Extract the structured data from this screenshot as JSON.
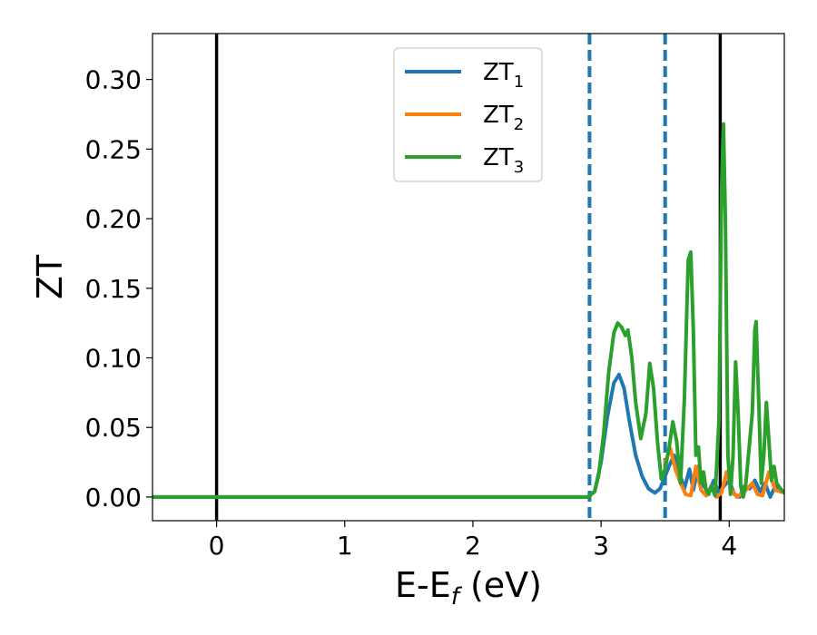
{
  "chart_data": {
    "type": "line",
    "title": "",
    "xlabel": "E-E",
    "xlabel_sub": "f",
    "xlabel_suffix": " (eV)",
    "ylabel": "ZT",
    "xlim": [
      -0.5,
      4.43
    ],
    "ylim": [
      -0.017,
      0.333
    ],
    "x_ticks": [
      0,
      1,
      2,
      3,
      4
    ],
    "x_tick_labels": [
      "0",
      "1",
      "2",
      "3",
      "4"
    ],
    "y_ticks": [
      0.0,
      0.05,
      0.1,
      0.15,
      0.2,
      0.25,
      0.3
    ],
    "y_tick_labels": [
      "0.00",
      "0.05",
      "0.10",
      "0.15",
      "0.20",
      "0.25",
      "0.30"
    ],
    "grid": false,
    "legend_position": "top-center",
    "vertical_lines": [
      {
        "x": 0.0,
        "style": "solid",
        "color": "#000000"
      },
      {
        "x": 3.93,
        "style": "solid",
        "color": "#000000"
      },
      {
        "x": 2.91,
        "style": "dashed",
        "color": "#1f77b4"
      },
      {
        "x": 3.5,
        "style": "dashed",
        "color": "#1f77b4"
      }
    ],
    "series": [
      {
        "name": "ZT",
        "name_sub": "1",
        "color": "#1f77b4",
        "points": [
          [
            -0.5,
            0
          ],
          [
            2.9,
            0
          ],
          [
            2.95,
            0.004
          ],
          [
            3.0,
            0.025
          ],
          [
            3.05,
            0.058
          ],
          [
            3.1,
            0.082
          ],
          [
            3.14,
            0.088
          ],
          [
            3.18,
            0.078
          ],
          [
            3.22,
            0.055
          ],
          [
            3.27,
            0.03
          ],
          [
            3.32,
            0.015
          ],
          [
            3.37,
            0.006
          ],
          [
            3.42,
            0.003
          ],
          [
            3.46,
            0.006
          ],
          [
            3.5,
            0.015
          ],
          [
            3.53,
            0.022
          ],
          [
            3.57,
            0.03
          ],
          [
            3.61,
            0.018
          ],
          [
            3.65,
            0.006
          ],
          [
            3.69,
            0.02
          ],
          [
            3.72,
            0.005
          ],
          [
            3.76,
            0.022
          ],
          [
            3.8,
            0.008
          ],
          [
            3.84,
            0.003
          ],
          [
            3.88,
            0.012
          ],
          [
            3.92,
            0.003
          ],
          [
            3.96,
            0.008
          ],
          [
            4.0,
            0.012
          ],
          [
            4.04,
            0.002
          ],
          [
            4.08,
            0.0
          ],
          [
            4.12,
            0.008
          ],
          [
            4.16,
            0.006
          ],
          [
            4.2,
            0.012
          ],
          [
            4.24,
            0.004
          ],
          [
            4.28,
            0.01
          ],
          [
            4.32,
            0.0
          ],
          [
            4.36,
            0.008
          ],
          [
            4.43,
            0.003
          ]
        ]
      },
      {
        "name": "ZT",
        "name_sub": "2",
        "color": "#ff7f0e",
        "points": [
          [
            3.5,
            0.025
          ],
          [
            3.54,
            0.035
          ],
          [
            3.58,
            0.02
          ],
          [
            3.62,
            0.01
          ],
          [
            3.66,
            0.002
          ],
          [
            3.7,
            0.001
          ],
          [
            3.74,
            0.022
          ],
          [
            3.78,
            0.005
          ],
          [
            3.82,
            0.001
          ],
          [
            3.86,
            0.008
          ],
          [
            3.9,
            0.0
          ],
          [
            3.94,
            0.003
          ],
          [
            3.98,
            0.018
          ],
          [
            4.02,
            0.005
          ],
          [
            4.06,
            0.0
          ],
          [
            4.12,
            0.004
          ],
          [
            4.18,
            0.01
          ],
          [
            4.22,
            0.002
          ],
          [
            4.26,
            0.001
          ],
          [
            4.31,
            0.018
          ],
          [
            4.36,
            0.005
          ],
          [
            4.43,
            0.003
          ]
        ]
      },
      {
        "name": "ZT",
        "name_sub": "3",
        "color": "#2ca02c",
        "points": [
          [
            -0.5,
            0
          ],
          [
            2.9,
            0
          ],
          [
            2.95,
            0.004
          ],
          [
            2.98,
            0.015
          ],
          [
            3.02,
            0.045
          ],
          [
            3.06,
            0.09
          ],
          [
            3.1,
            0.118
          ],
          [
            3.13,
            0.125
          ],
          [
            3.16,
            0.122
          ],
          [
            3.19,
            0.116
          ],
          [
            3.21,
            0.12
          ],
          [
            3.24,
            0.1
          ],
          [
            3.27,
            0.068
          ],
          [
            3.31,
            0.042
          ],
          [
            3.35,
            0.06
          ],
          [
            3.38,
            0.096
          ],
          [
            3.41,
            0.078
          ],
          [
            3.44,
            0.04
          ],
          [
            3.47,
            0.013
          ],
          [
            3.5,
            0.02
          ],
          [
            3.53,
            0.035
          ],
          [
            3.56,
            0.054
          ],
          [
            3.59,
            0.04
          ],
          [
            3.62,
            0.01
          ],
          [
            3.65,
            0.07
          ],
          [
            3.68,
            0.17
          ],
          [
            3.7,
            0.176
          ],
          [
            3.72,
            0.12
          ],
          [
            3.74,
            0.03
          ],
          [
            3.76,
            0.036
          ],
          [
            3.78,
            0.01
          ],
          [
            3.8,
            0.018
          ],
          [
            3.82,
            0.005
          ],
          [
            3.84,
            0.002
          ],
          [
            3.86,
            0.008
          ],
          [
            3.89,
            0.001
          ],
          [
            3.92,
            0.055
          ],
          [
            3.94,
            0.22
          ],
          [
            3.955,
            0.268
          ],
          [
            3.97,
            0.2
          ],
          [
            3.99,
            0.03
          ],
          [
            4.01,
            0.002
          ],
          [
            4.03,
            0.03
          ],
          [
            4.05,
            0.097
          ],
          [
            4.07,
            0.06
          ],
          [
            4.09,
            0.008
          ],
          [
            4.11,
            0.0
          ],
          [
            4.13,
            0.01
          ],
          [
            4.15,
            0.03
          ],
          [
            4.18,
            0.06
          ],
          [
            4.2,
            0.12
          ],
          [
            4.21,
            0.126
          ],
          [
            4.23,
            0.07
          ],
          [
            4.25,
            0.01
          ],
          [
            4.27,
            0.03
          ],
          [
            4.29,
            0.068
          ],
          [
            4.31,
            0.04
          ],
          [
            4.33,
            0.012
          ],
          [
            4.35,
            0.022
          ],
          [
            4.37,
            0.01
          ],
          [
            4.4,
            0.006
          ],
          [
            4.43,
            0.003
          ]
        ]
      }
    ]
  }
}
